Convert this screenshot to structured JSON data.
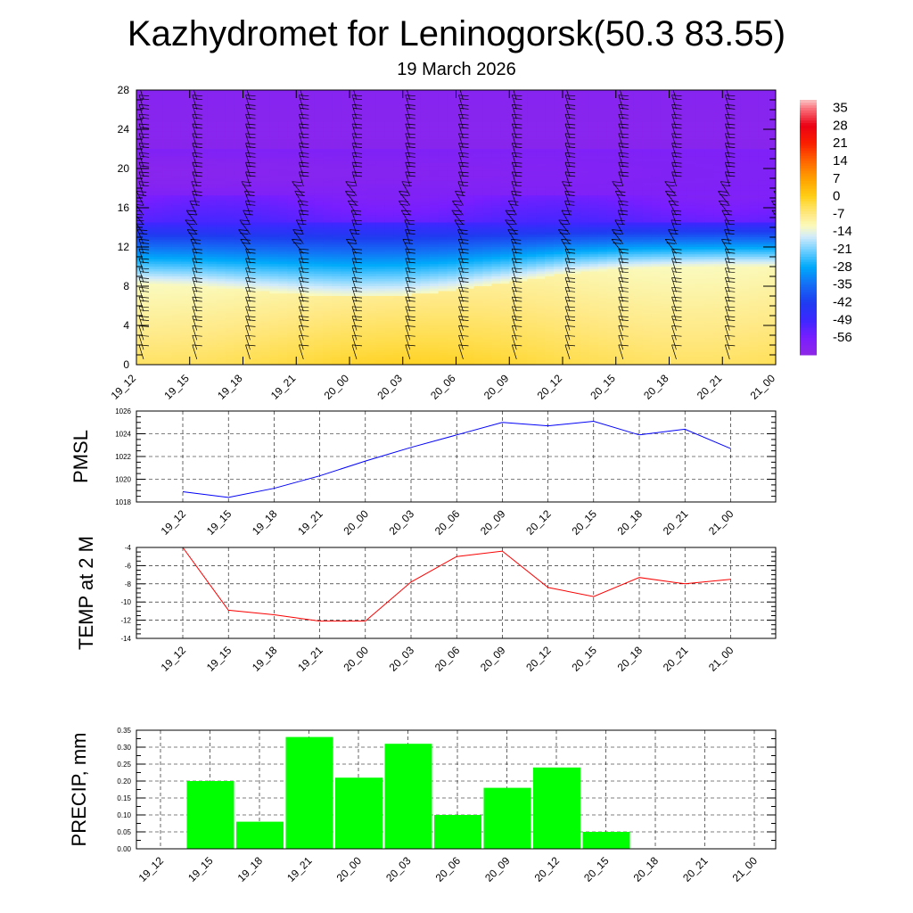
{
  "title": "Kazhydromet for Leninogorsk(50.3 83.55)",
  "subtitle": "19 March 2026",
  "chart_data": [
    {
      "type": "heatmap",
      "name": "vertical-temperature-section",
      "x": [
        "19_12",
        "19_15",
        "19_18",
        "19_21",
        "20_00",
        "20_03",
        "20_06",
        "20_09",
        "20_12",
        "20_15",
        "20_18",
        "20_21",
        "21_00"
      ],
      "y_ticks": [
        0,
        4,
        8,
        12,
        16,
        20,
        24,
        28
      ],
      "ylim": [
        0,
        28
      ],
      "colorbar": {
        "labels": [
          "35",
          "28",
          "21",
          "14",
          "7",
          "0",
          "-7",
          "-14",
          "-21",
          "-28",
          "-35",
          "-42",
          "-49",
          "-56"
        ],
        "range": [
          -63,
          38
        ]
      },
      "wind_barbs": true,
      "grid": false
    },
    {
      "type": "line",
      "name": "pmsl",
      "ylabel": "PMSL",
      "categories": [
        "19_12",
        "19_15",
        "19_18",
        "19_21",
        "20_00",
        "20_03",
        "20_06",
        "20_09",
        "20_12",
        "20_15",
        "20_18",
        "20_21",
        "21_00"
      ],
      "values": [
        1018.9,
        1018.4,
        1019.2,
        1020.3,
        1021.6,
        1022.8,
        1023.9,
        1025.0,
        1024.7,
        1025.1,
        1023.9,
        1024.4,
        1022.7
      ],
      "ylim": [
        1018,
        1026
      ],
      "yticks": [
        1018,
        1020,
        1022,
        1024,
        1026
      ],
      "color": "#0000ff",
      "grid": true
    },
    {
      "type": "line",
      "name": "temp2m",
      "ylabel": "TEMP at 2 M",
      "categories": [
        "19_12",
        "19_15",
        "19_18",
        "19_21",
        "20_00",
        "20_03",
        "20_06",
        "20_09",
        "20_12",
        "20_15",
        "20_18",
        "20_21",
        "21_00"
      ],
      "values": [
        -4.0,
        -10.9,
        -11.4,
        -12.1,
        -12.1,
        -7.8,
        -5.0,
        -4.4,
        -8.4,
        -9.4,
        -7.3,
        -8.0,
        -7.5
      ],
      "ylim": [
        -14,
        -4
      ],
      "yticks": [
        -14,
        -12,
        -10,
        -8,
        -6,
        -4
      ],
      "color": "#ff0000",
      "grid": true
    },
    {
      "type": "bar",
      "name": "precip",
      "ylabel": "PRECIP, mm",
      "categories": [
        "19_12",
        "19_15",
        "19_18",
        "19_21",
        "20_00",
        "20_03",
        "20_06",
        "20_09",
        "20_12",
        "20_15",
        "20_18",
        "20_21",
        "21_00"
      ],
      "values": [
        0,
        0.2,
        0.08,
        0.33,
        0.21,
        0.31,
        0.1,
        0.18,
        0.24,
        0.05,
        0,
        0,
        0
      ],
      "ylim": [
        0,
        0.35
      ],
      "yticks": [
        "0.00",
        "0.05",
        "0.10",
        "0.15",
        "0.20",
        "0.25",
        "0.30",
        "0.35"
      ],
      "color": "#00ff00",
      "grid": true
    }
  ]
}
